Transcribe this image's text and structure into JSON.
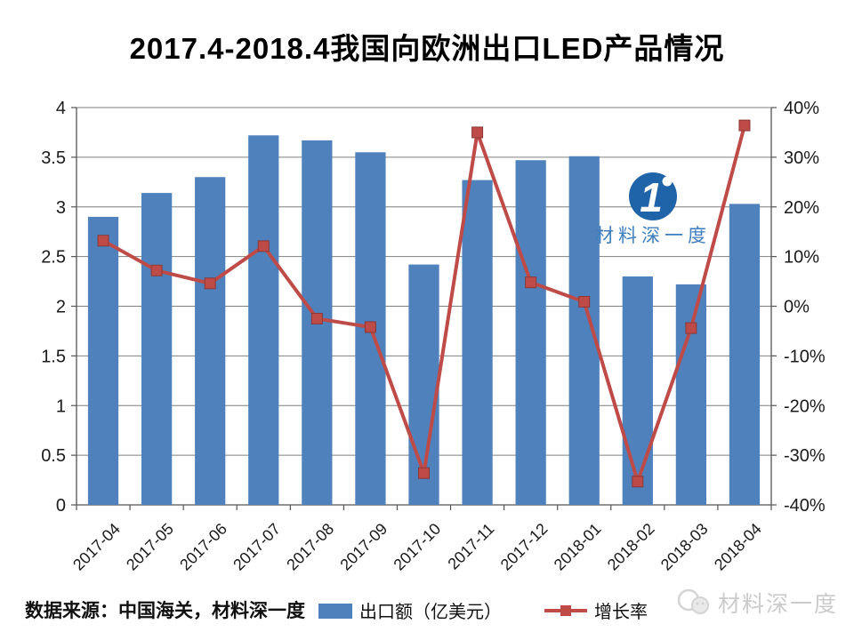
{
  "title": "2017.4-2018.4我国向欧洲出口LED产品情况",
  "source_note": "数据来源：中国海关，材料深一度",
  "watermark": {
    "text": "材料深一度"
  },
  "logo": {
    "glyph": "1",
    "text": "材料深一度"
  },
  "colors": {
    "bar": "#4F81BD",
    "line": "#BE4B48",
    "marker_edge": "#8C3836",
    "grid": "#7f7f7f",
    "axis": "#555555",
    "tick_text": "#1a1a1a",
    "logo_blue": "#1F63A8",
    "logo_text_blue": "#3E7EBE",
    "watermark_gray": "#cbcbcb"
  },
  "chart_data": {
    "type": "combo",
    "title": "2017.4-2018.4我国向欧洲出口LED产品情况",
    "xlabel": "",
    "ylabel_left": "出口额（亿美元）",
    "ylabel_right": "增长率",
    "grid": true,
    "legend_position": "bottom",
    "categories": [
      "2017-04",
      "2017-05",
      "2017-06",
      "2017-07",
      "2017-08",
      "2017-09",
      "2017-10",
      "2017-11",
      "2017-12",
      "2018-01",
      "2018-02",
      "2018-03",
      "2018-04"
    ],
    "series": [
      {
        "name": "出口额（亿美元）",
        "type": "bar",
        "axis": "left",
        "color": "#4F81BD",
        "values": [
          2.9,
          3.14,
          3.3,
          3.72,
          3.67,
          3.55,
          2.42,
          3.27,
          3.47,
          3.51,
          2.3,
          2.22,
          3.03
        ]
      },
      {
        "name": "增长率",
        "type": "line",
        "axis": "right",
        "color": "#BE4B48",
        "values": [
          13.2,
          7.2,
          4.6,
          12.1,
          -2.5,
          -4.2,
          -33.6,
          35.0,
          4.8,
          0.9,
          -35.3,
          -4.4,
          36.4
        ]
      }
    ],
    "left_axis": {
      "min": 0,
      "max": 4,
      "ticks": [
        "0",
        "0.5",
        "1",
        "1.5",
        "2",
        "2.5",
        "3",
        "3.5",
        "4"
      ]
    },
    "right_axis": {
      "min": -40,
      "max": 40,
      "ticks": [
        "-40%",
        "-30%",
        "-20%",
        "-10%",
        "0%",
        "10%",
        "20%",
        "30%",
        "40%"
      ]
    }
  }
}
